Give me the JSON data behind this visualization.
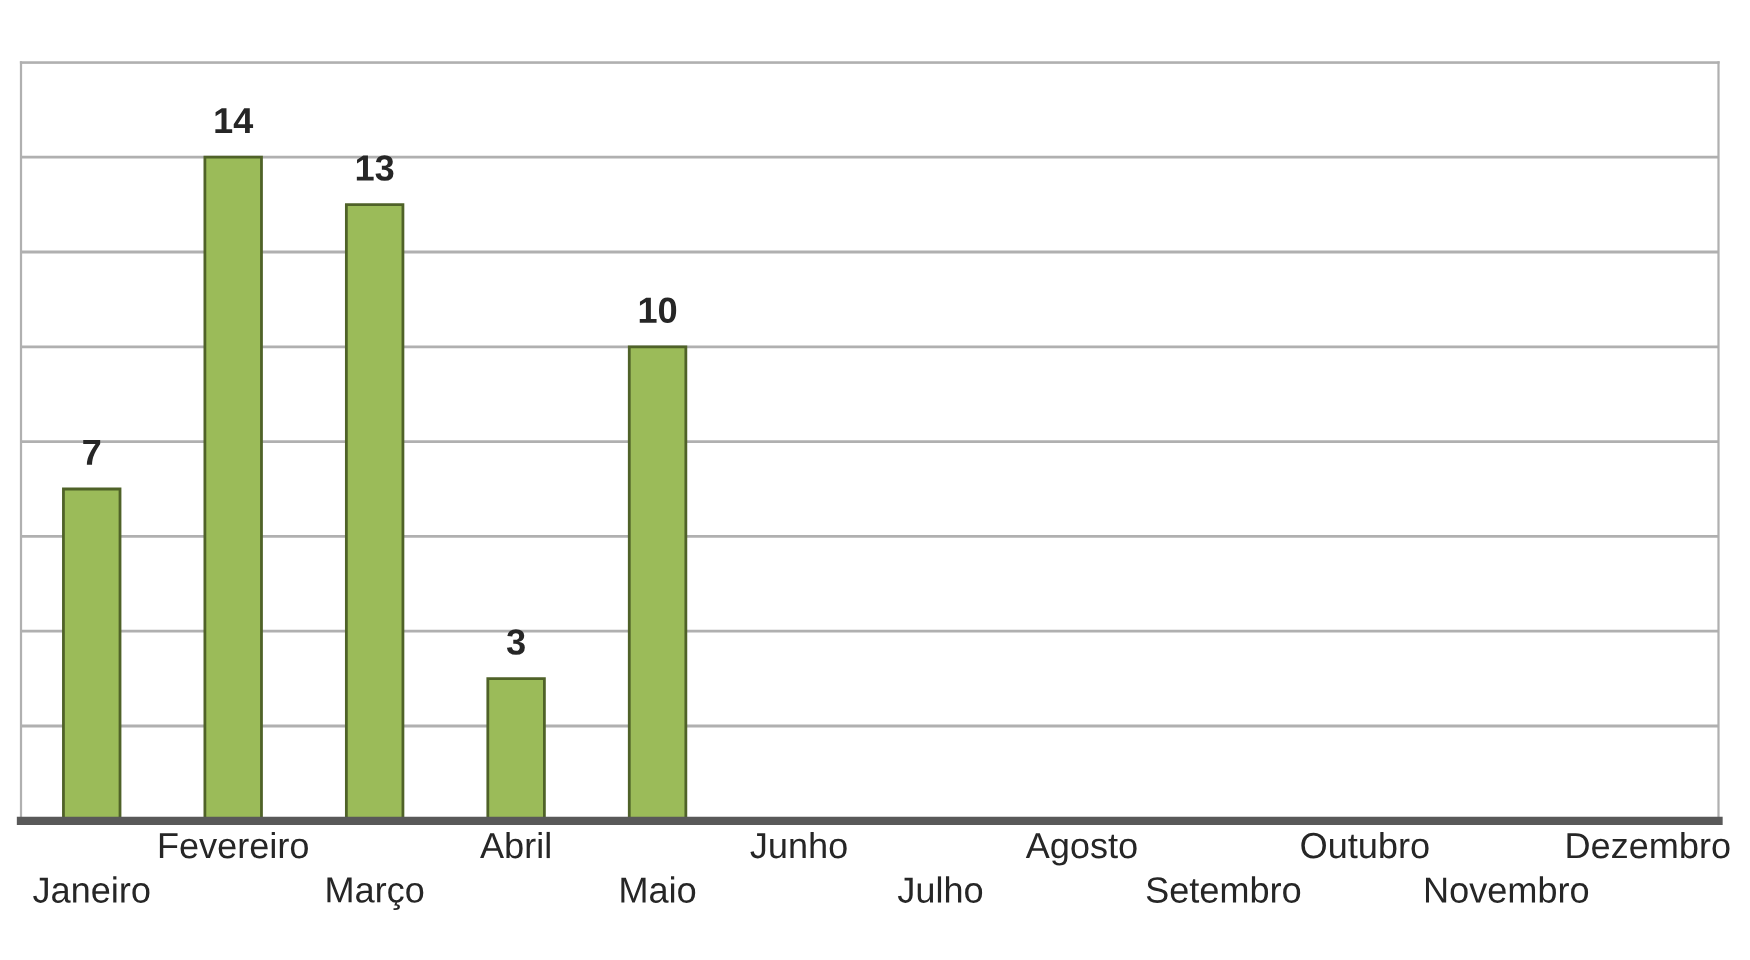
{
  "chart_data": {
    "type": "bar",
    "categories": [
      "Janeiro",
      "Fevereiro",
      "Março",
      "Abril",
      "Maio",
      "Junho",
      "Julho",
      "Agosto",
      "Setembro",
      "Outubro",
      "Novembro",
      "Dezembro"
    ],
    "values": [
      7,
      14,
      13,
      3,
      10,
      null,
      null,
      null,
      null,
      null,
      null,
      null
    ],
    "color": "#9bbb59",
    "ylim": [
      0,
      16
    ],
    "yticks": [
      {
        "value": 0,
        "label": null
      },
      {
        "value": 2,
        "label": null
      },
      {
        "value": 4,
        "label": null
      },
      {
        "value": 6,
        "label": null
      },
      {
        "value": 8,
        "label": null
      },
      {
        "value": 10,
        "label": null
      },
      {
        "value": 12,
        "label": null
      },
      {
        "value": 14,
        "label": null
      },
      {
        "value": 16,
        "label": null
      }
    ],
    "tick_labels": "x",
    "grid": "y",
    "data_labels": true
  }
}
